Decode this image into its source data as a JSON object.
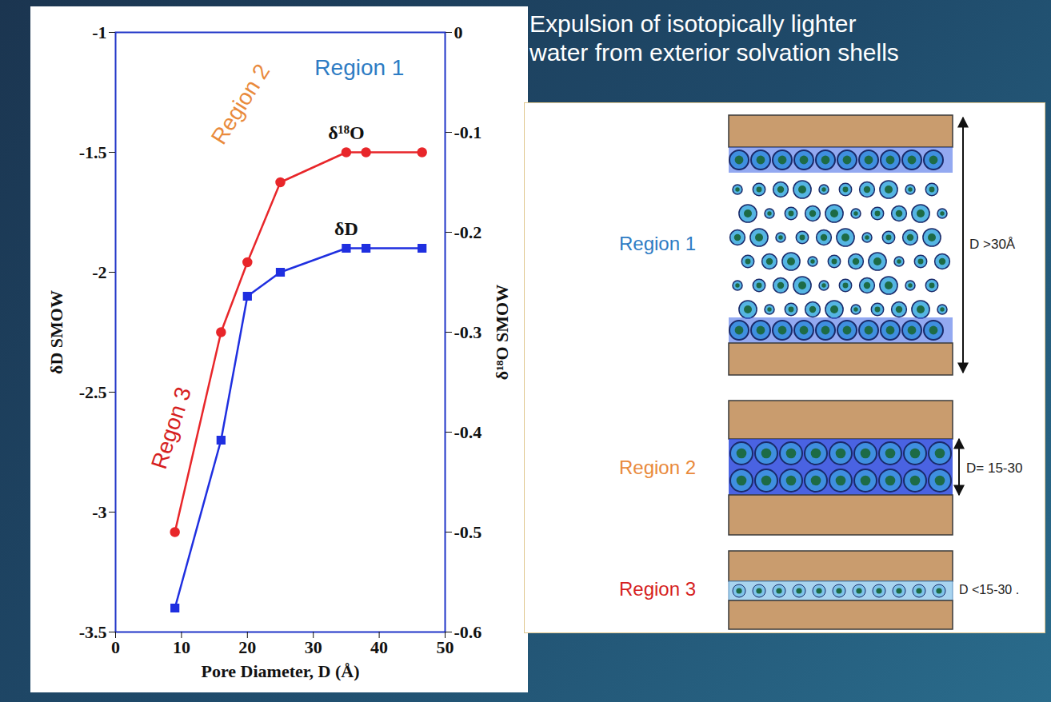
{
  "chart_data": {
    "type": "line",
    "x_label": "Pore Diameter, D (Å)",
    "y_label": "δD SMOW",
    "y2_label": "δ¹⁸O SMOW",
    "x": [
      9,
      16,
      20,
      25,
      35,
      38,
      46.5
    ],
    "series": [
      {
        "name": "δ¹⁸O",
        "color": "#e8262a",
        "marker": "circle",
        "axis": "y2",
        "values": [
          -0.5,
          -0.3,
          -0.23,
          -0.15,
          -0.12,
          -0.12,
          -0.12
        ]
      },
      {
        "name": "δD",
        "color": "#1f2fe0",
        "marker": "square",
        "values": [
          -3.4,
          -2.7,
          -2.1,
          -2.0,
          -1.9,
          -1.9,
          -1.9
        ]
      }
    ],
    "xlim": [
      0,
      50
    ],
    "xticks": [
      0,
      10,
      20,
      30,
      40,
      50
    ],
    "ylim": [
      -3.5,
      -1
    ],
    "yticks": [
      -3.5,
      -3,
      -2.5,
      -2,
      -1.5,
      -1
    ],
    "y2lim": [
      -0.6,
      0
    ],
    "y2ticks": [
      -0.6,
      -0.5,
      -0.4,
      -0.3,
      -0.2,
      -0.1,
      0
    ],
    "grid": false,
    "annotations": [
      {
        "text": "Region 1",
        "x": 37,
        "y": -1.15,
        "color": "#2e7cc4"
      },
      {
        "text": "Region 2",
        "x": 19,
        "y": -1.3,
        "color": "#e98a3c"
      },
      {
        "text": "Regon 3",
        "x": 8.5,
        "y": -2.65,
        "color": "#d61f1f"
      }
    ]
  },
  "heading": "Expulsion of isotopically lighter water from exterior solvation shells",
  "diagram": {
    "regions": [
      {
        "label": "Region 1",
        "color": "#2e7cc4",
        "dimension": "D >30Å"
      },
      {
        "label": "Region 2",
        "color": "#e98a3c",
        "dimension": "D= 15-30"
      },
      {
        "label": "Region 3",
        "color": "#d61f1f",
        "dimension": "D <15-30 ."
      }
    ]
  }
}
